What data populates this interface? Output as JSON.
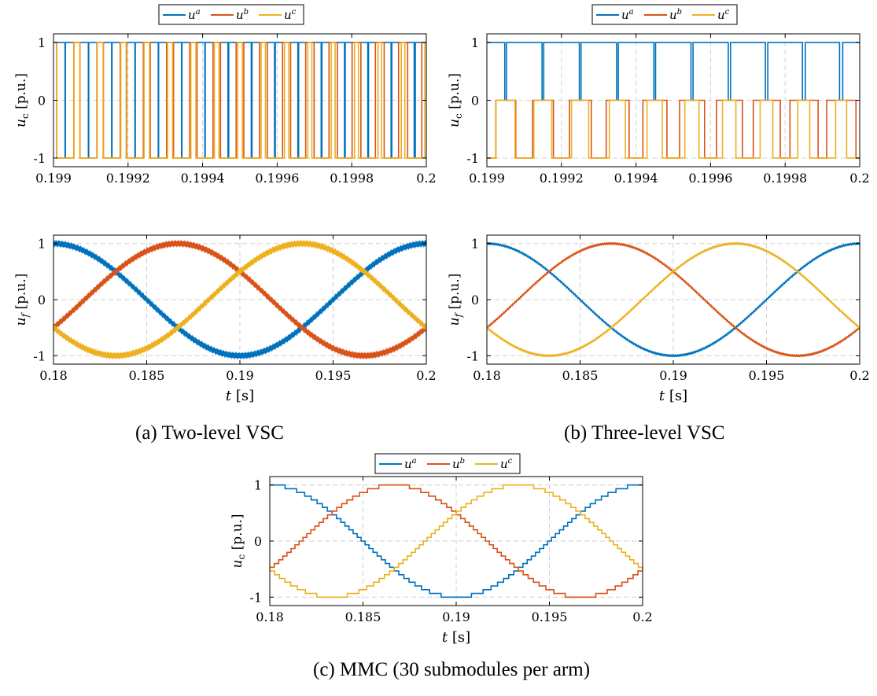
{
  "legend": {
    "labels": [
      "u",
      "u",
      "u"
    ],
    "superscripts": [
      "a",
      "b",
      "c"
    ]
  },
  "colors": {
    "a": "#0072BD",
    "b": "#D95319",
    "c": "#EDB120",
    "grid": "#d0d0d0"
  },
  "captions": {
    "a": "(a) Two-level VSC",
    "b": "(b) Three-level VSC",
    "c": "(c) MMC (30 submodules per arm)"
  },
  "chart_data": [
    {
      "id": "a-top",
      "type": "line",
      "description": "Two-level VSC switching signals, square waves between -1 and 1",
      "ylabel": {
        "var": "u",
        "sub": "c",
        "unit": "[p.u.]"
      },
      "xlabel": null,
      "xlim": [
        0.199,
        0.2
      ],
      "ylim": [
        -1.15,
        1.15
      ],
      "xticks": [
        0.199,
        0.1992,
        0.1994,
        0.1996,
        0.1998,
        0.2
      ],
      "xticklabels": [
        "0.199",
        "0.1992",
        "0.1994",
        "0.1996",
        "0.1998",
        "0.2"
      ],
      "yticks": [
        -1,
        0,
        1
      ],
      "yticklabels": [
        "-1",
        "0",
        "1"
      ],
      "legend": "top",
      "grid": true,
      "series": [
        {
          "name": "u^a",
          "levels": [
            -1,
            1
          ],
          "carrier_periods": 16,
          "amp": 0.96,
          "phase_deg": 0
        },
        {
          "name": "u^b",
          "levels": [
            -1,
            1
          ],
          "carrier_periods": 16,
          "amp": 0.96,
          "phase_deg": -120
        },
        {
          "name": "u^c",
          "levels": [
            -1,
            1
          ],
          "carrier_periods": 16,
          "amp": 0.96,
          "phase_deg": 120
        }
      ]
    },
    {
      "id": "a-bottom",
      "type": "line",
      "ylabel": {
        "var": "u",
        "sub": "f",
        "unit": "[p.u.]"
      },
      "xlabel": {
        "var": "t",
        "unit": "[s]"
      },
      "xlim": [
        0.18,
        0.2
      ],
      "ylim": [
        -1.15,
        1.15
      ],
      "xticks": [
        0.18,
        0.185,
        0.19,
        0.195,
        0.2
      ],
      "xticklabels": [
        "0.18",
        "0.185",
        "0.19",
        "0.195",
        "0.2"
      ],
      "yticks": [
        -1,
        0,
        1
      ],
      "yticklabels": [
        "-1",
        "0",
        "1"
      ],
      "grid": true,
      "ripple": 0.035,
      "ripple_freq": 16000,
      "series": [
        {
          "name": "u^a",
          "freq": 50,
          "amp": 1.0,
          "phase_deg": 0
        },
        {
          "name": "u^b",
          "freq": 50,
          "amp": 1.0,
          "phase_deg": -120
        },
        {
          "name": "u^c",
          "freq": 50,
          "amp": 1.0,
          "phase_deg": 120
        }
      ]
    },
    {
      "id": "b-top",
      "type": "line",
      "description": "Three-level VSC switching signals, levels -1, 0, 1",
      "ylabel": {
        "var": "u",
        "sub": "c",
        "unit": "[p.u.]"
      },
      "xlabel": null,
      "xlim": [
        0.199,
        0.2
      ],
      "ylim": [
        -1.15,
        1.15
      ],
      "xticks": [
        0.199,
        0.1992,
        0.1994,
        0.1996,
        0.1998,
        0.2
      ],
      "xticklabels": [
        "0.199",
        "0.1992",
        "0.1994",
        "0.1996",
        "0.1998",
        "0.2"
      ],
      "yticks": [
        -1,
        0,
        1
      ],
      "yticklabels": [
        "-1",
        "0",
        "1"
      ],
      "legend": "top",
      "grid": true,
      "series": [
        {
          "name": "u^a",
          "levels": [
            0,
            1
          ],
          "carrier_periods": 10,
          "amp": 0.96,
          "phase_deg": 0
        },
        {
          "name": "u^b",
          "levels": [
            -1,
            0
          ],
          "carrier_periods": 10,
          "amp": 0.96,
          "phase_deg": -120
        },
        {
          "name": "u^c",
          "levels": [
            -1,
            0
          ],
          "carrier_periods": 10,
          "amp": 0.96,
          "phase_deg": 120
        }
      ]
    },
    {
      "id": "b-bottom",
      "type": "line",
      "ylabel": {
        "var": "u",
        "sub": "f",
        "unit": "[p.u.]"
      },
      "xlabel": {
        "var": "t",
        "unit": "[s]"
      },
      "xlim": [
        0.18,
        0.2
      ],
      "ylim": [
        -1.15,
        1.15
      ],
      "xticks": [
        0.18,
        0.185,
        0.19,
        0.195,
        0.2
      ],
      "xticklabels": [
        "0.18",
        "0.185",
        "0.19",
        "0.195",
        "0.2"
      ],
      "yticks": [
        -1,
        0,
        1
      ],
      "yticklabels": [
        "-1",
        "0",
        "1"
      ],
      "grid": true,
      "ripple": 0.015,
      "ripple_freq": 10000,
      "series": [
        {
          "name": "u^a",
          "freq": 50,
          "amp": 1.0,
          "phase_deg": 0
        },
        {
          "name": "u^b",
          "freq": 50,
          "amp": 1.0,
          "phase_deg": -120
        },
        {
          "name": "u^c",
          "freq": 50,
          "amp": 1.0,
          "phase_deg": 120
        }
      ]
    },
    {
      "id": "c",
      "type": "line",
      "description": "MMC staircase voltage, 30 submodules per arm",
      "ylabel": {
        "var": "u",
        "sub": "c",
        "unit": "[p.u.]"
      },
      "xlabel": {
        "var": "t",
        "unit": "[s]"
      },
      "xlim": [
        0.18,
        0.2
      ],
      "ylim": [
        -1.15,
        1.15
      ],
      "xticks": [
        0.18,
        0.185,
        0.19,
        0.195,
        0.2
      ],
      "xticklabels": [
        "0.18",
        "0.185",
        "0.19",
        "0.195",
        "0.2"
      ],
      "yticks": [
        -1,
        0,
        1
      ],
      "yticklabels": [
        "-1",
        "0",
        "1"
      ],
      "legend": "top",
      "grid": true,
      "levels_step": 0.0667,
      "series": [
        {
          "name": "u^a",
          "freq": 50,
          "amp": 1.0,
          "phase_deg": 0
        },
        {
          "name": "u^b",
          "freq": 50,
          "amp": 1.0,
          "phase_deg": -120
        },
        {
          "name": "u^c",
          "freq": 50,
          "amp": 1.0,
          "phase_deg": 120
        }
      ]
    }
  ]
}
